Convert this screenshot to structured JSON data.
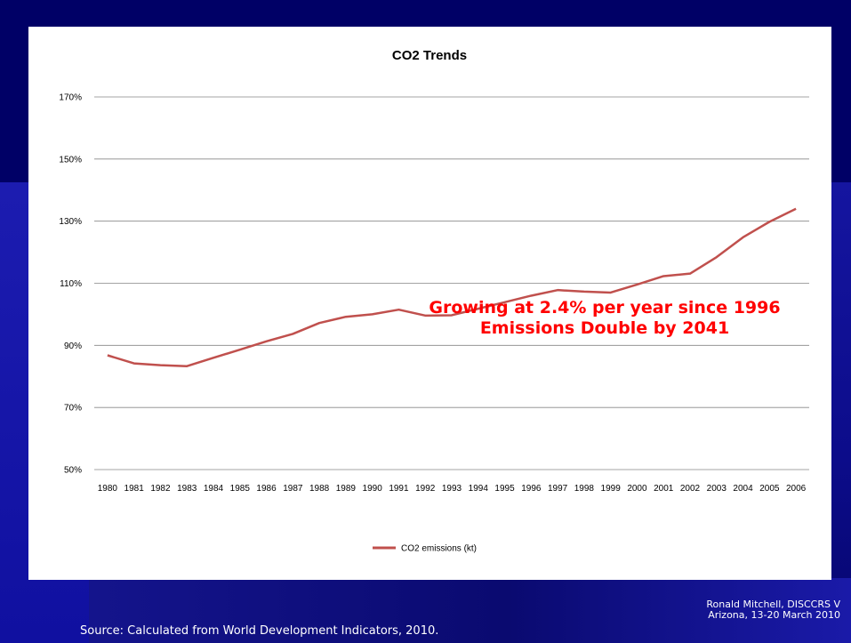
{
  "slide": {
    "annotation_line1": "Growing at 2.4% per year since 1996",
    "annotation_line2": "Emissions Double by 2041",
    "credit_line1": "Ronald Mitchell, DISCCRS V",
    "credit_line2": "Arizona, 13-20 March 2010",
    "source": "Source: Calculated from World Development Indicators, 2010."
  },
  "colors": {
    "series_line": "#c0504d",
    "annotation": "#ff0000",
    "background": "#0a0a78"
  },
  "chart_data": {
    "type": "line",
    "title": "CO2 Trends",
    "xlabel": "",
    "ylabel": "",
    "categories": [
      "1980",
      "1981",
      "1982",
      "1983",
      "1984",
      "1985",
      "1986",
      "1987",
      "1988",
      "1989",
      "1990",
      "1991",
      "1992",
      "1993",
      "1994",
      "1995",
      "1996",
      "1997",
      "1998",
      "1999",
      "2000",
      "2001",
      "2002",
      "2003",
      "2004",
      "2005",
      "2006"
    ],
    "series": [
      {
        "name": "CO2 emissions (kt)",
        "values": [
          86.8,
          84.2,
          83.6,
          83.3,
          86.0,
          88.6,
          91.3,
          93.7,
          97.2,
          99.2,
          100.0,
          101.5,
          99.6,
          99.7,
          101.8,
          103.9,
          106.0,
          107.8,
          107.3,
          107.0,
          109.6,
          112.3,
          113.1,
          118.4,
          124.8,
          129.8,
          134.0
        ]
      }
    ],
    "y_ticks": [
      "50%",
      "70%",
      "90%",
      "110%",
      "130%",
      "150%",
      "170%"
    ],
    "ylim": [
      50,
      170
    ],
    "grid": true,
    "legend_position": "bottom"
  }
}
